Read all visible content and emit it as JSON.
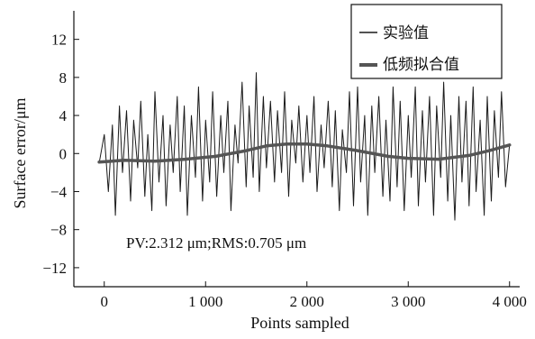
{
  "chart_data": {
    "type": "line",
    "xlabel": "Points sampled",
    "ylabel": "Surface error/μm",
    "xlim": [
      -300,
      4100
    ],
    "ylim": [
      -14,
      15
    ],
    "xticks": [
      0,
      1000,
      2000,
      3000,
      4000
    ],
    "xtick_labels": [
      "0",
      "1 000",
      "2 000",
      "3 000",
      "4 000"
    ],
    "yticks": [
      12,
      8,
      4,
      0,
      -4,
      -8,
      -12
    ],
    "ytick_labels": [
      "12",
      "8",
      "4",
      "0",
      "−4",
      "−8",
      "−12"
    ],
    "grid": false,
    "legend_position": "top-right",
    "annotation": "PV:2.312 μm;RMS:0.705 μm",
    "series": [
      {
        "name": "实验值",
        "style": "thin",
        "color": "#1a1a1a",
        "x": [
          -50,
          0,
          40,
          80,
          110,
          150,
          180,
          220,
          260,
          290,
          330,
          360,
          400,
          430,
          470,
          500,
          540,
          580,
          610,
          650,
          680,
          720,
          750,
          790,
          820,
          860,
          900,
          930,
          970,
          1000,
          1040,
          1070,
          1110,
          1150,
          1180,
          1220,
          1250,
          1290,
          1320,
          1360,
          1400,
          1430,
          1470,
          1500,
          1530,
          1570,
          1600,
          1640,
          1680,
          1710,
          1750,
          1780,
          1820,
          1850,
          1890,
          1920,
          1960,
          2000,
          2030,
          2070,
          2100,
          2140,
          2170,
          2210,
          2250,
          2280,
          2320,
          2350,
          2390,
          2420,
          2460,
          2500,
          2530,
          2570,
          2600,
          2640,
          2670,
          2710,
          2750,
          2780,
          2820,
          2850,
          2890,
          2920,
          2960,
          3000,
          3030,
          3070,
          3100,
          3140,
          3170,
          3210,
          3250,
          3280,
          3320,
          3350,
          3390,
          3420,
          3460,
          3500,
          3530,
          3570,
          3600,
          3640,
          3670,
          3710,
          3750,
          3780,
          3820,
          3850,
          3890,
          3920,
          3960,
          4000
        ],
        "values": [
          -1.0,
          2.0,
          -4.0,
          3.0,
          -6.5,
          5.0,
          -2.0,
          4.5,
          -5.0,
          3.5,
          -1.5,
          5.5,
          -4.5,
          2.0,
          -6.0,
          6.5,
          -3.0,
          4.0,
          -5.5,
          3.0,
          -2.0,
          6.0,
          -4.0,
          5.0,
          -6.5,
          4.0,
          -2.5,
          7.0,
          -5.0,
          3.5,
          -3.0,
          6.5,
          -4.5,
          4.0,
          -2.0,
          5.5,
          -6.0,
          3.0,
          -1.0,
          7.5,
          -3.5,
          5.0,
          -2.5,
          8.5,
          -4.0,
          6.0,
          -1.5,
          5.5,
          -3.0,
          4.5,
          -2.0,
          6.5,
          -4.5,
          3.5,
          -1.0,
          5.0,
          -3.0,
          4.0,
          -2.0,
          6.0,
          -4.0,
          3.0,
          -1.5,
          5.5,
          -3.5,
          4.5,
          -6.0,
          2.5,
          -2.0,
          6.5,
          -5.5,
          7.0,
          -3.0,
          4.0,
          -6.5,
          5.0,
          -2.0,
          6.0,
          -4.5,
          3.5,
          -5.0,
          7.0,
          -3.5,
          5.5,
          -6.0,
          4.0,
          -2.5,
          7.0,
          -5.5,
          4.5,
          -3.0,
          6.0,
          -6.5,
          5.0,
          -2.5,
          7.5,
          -5.0,
          4.0,
          -7.0,
          6.0,
          -3.0,
          5.5,
          -5.5,
          7.0,
          -4.0,
          3.5,
          -6.5,
          6.0,
          -5.0,
          4.5,
          -2.5,
          6.5,
          -3.5,
          1.0
        ]
      },
      {
        "name": "低频拟合值",
        "style": "thick",
        "color": "#555555",
        "x": [
          -50,
          200,
          500,
          800,
          1100,
          1400,
          1600,
          1800,
          2000,
          2200,
          2500,
          2800,
          3000,
          3300,
          3600,
          3800,
          4000
        ],
        "values": [
          -0.9,
          -0.7,
          -0.8,
          -0.6,
          -0.3,
          0.3,
          0.8,
          1.0,
          1.0,
          0.8,
          0.3,
          -0.3,
          -0.5,
          -0.6,
          -0.2,
          0.3,
          0.9
        ]
      }
    ]
  }
}
